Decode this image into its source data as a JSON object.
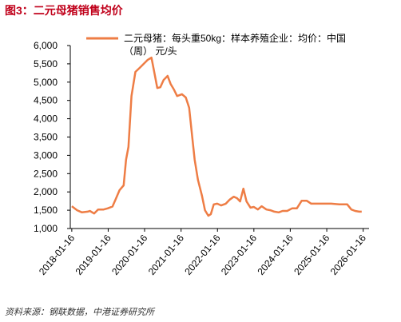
{
  "chart_data": {
    "type": "line",
    "title": "图3：二元母猪销售均价",
    "source": "资料来源：钢联数据，中港证券研究所",
    "x": [
      "2018-01-16",
      "2018-03-10",
      "2018-04-28",
      "2018-06-25",
      "2018-07-16",
      "2018-08-28",
      "2018-10-07",
      "2018-12-01",
      "2019-01-10",
      "2019-02-28",
      "2019-04-01",
      "2019-05-10",
      "2019-06-20",
      "2019-07-14",
      "2019-08-07",
      "2019-09-07",
      "2019-10-16",
      "2019-11-28",
      "2020-01-07",
      "2020-02-16",
      "2020-03-25",
      "2020-04-19",
      "2020-05-22",
      "2020-06-22",
      "2020-07-25",
      "2020-09-03",
      "2020-10-03",
      "2020-11-05",
      "2020-12-07",
      "2021-01-25",
      "2021-03-04",
      "2021-04-07",
      "2021-05-07",
      "2021-06-01",
      "2021-07-04",
      "2021-08-13",
      "2021-09-13",
      "2021-10-16",
      "2021-11-10",
      "2021-12-10",
      "2022-01-13",
      "2022-02-22",
      "2022-04-10",
      "2022-05-19",
      "2022-06-28",
      "2022-07-31",
      "2022-08-31",
      "2022-10-03",
      "2022-11-03",
      "2022-12-13",
      "2023-01-16",
      "2023-02-25",
      "2023-04-04",
      "2023-05-22",
      "2023-06-30",
      "2023-08-09",
      "2023-09-22",
      "2023-10-31",
      "2023-12-16",
      "2024-02-03",
      "2024-03-22",
      "2024-05-10",
      "2024-06-28",
      "2024-08-13",
      "2024-10-01",
      "2024-12-13",
      "2025-03-01",
      "2025-05-22",
      "2025-08-09",
      "2025-09-19",
      "2025-10-28",
      "2025-12-07",
      "2026-01-01"
    ],
    "series": [
      {
        "name": "二元母猪：每头重50kg：样本养殖企业：均价：中国（周） 元/头",
        "color": "#ee7d45",
        "values": [
          1610,
          1500,
          1440,
          1460,
          1480,
          1410,
          1520,
          1520,
          1550,
          1600,
          1800,
          2050,
          2180,
          2880,
          3230,
          4620,
          5280,
          5390,
          5500,
          5610,
          5670,
          5320,
          4840,
          4860,
          5060,
          5170,
          4950,
          4800,
          4620,
          4670,
          4580,
          4300,
          3530,
          2880,
          2330,
          1900,
          1500,
          1350,
          1390,
          1660,
          1680,
          1630,
          1680,
          1790,
          1870,
          1830,
          1740,
          2090,
          1740,
          1570,
          1590,
          1520,
          1610,
          1520,
          1500,
          1460,
          1440,
          1480,
          1480,
          1550,
          1550,
          1760,
          1760,
          1680,
          1680,
          1680,
          1680,
          1660,
          1660,
          1520,
          1480,
          1460,
          1460
        ]
      }
    ],
    "xlim": [
      "2018-01-01",
      "2026-03-16"
    ],
    "xticks": [
      "2018-01-16",
      "2019-01-16",
      "2020-01-16",
      "2021-01-16",
      "2022-01-16",
      "2023-01-16",
      "2024-01-16",
      "2025-01-16",
      "2026-01-16"
    ],
    "ylim": [
      1000,
      6000
    ],
    "yticks": [
      {
        "value": 1000,
        "label": "1,000"
      },
      {
        "value": 1500,
        "label": "1,500"
      },
      {
        "value": 2000,
        "label": "2,000"
      },
      {
        "value": 2500,
        "label": "2,500"
      },
      {
        "value": 3000,
        "label": "3,000"
      },
      {
        "value": 3500,
        "label": "3,500"
      },
      {
        "value": 4000,
        "label": "4,000"
      },
      {
        "value": 4500,
        "label": "4,500"
      },
      {
        "value": 5000,
        "label": "5,000"
      },
      {
        "value": 5500,
        "label": "5,500"
      },
      {
        "value": 6000,
        "label": "6,000"
      }
    ],
    "grid": false
  }
}
